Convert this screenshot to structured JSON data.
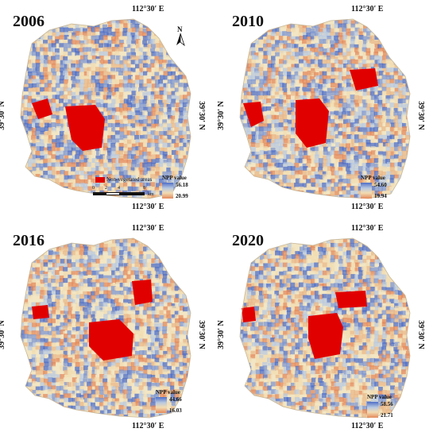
{
  "panels": [
    {
      "year": "2006",
      "lon_label": "112°30′ E",
      "lat_label": "39°30′ N",
      "npp_title": "NPP value",
      "npp_high": "56.18",
      "npp_low": "20.99"
    },
    {
      "year": "2010",
      "lon_label": "112°30′ E",
      "lat_label": "39°30′ N",
      "npp_title": "NPP value",
      "npp_high": "54.60",
      "npp_low": "19.94"
    },
    {
      "year": "2016",
      "lon_label": "112°30′ E",
      "lat_label": "39°30′ N",
      "npp_title": "NPP value",
      "npp_high": "44.66",
      "npp_low": "16.03"
    },
    {
      "year": "2020",
      "lon_label": "112°30′ E",
      "lat_label": "39°30′ N",
      "npp_title": "NPP value",
      "npp_high": "58.56",
      "npp_low": "21.71"
    }
  ],
  "legend_nonveg": "Non-vegetated areas",
  "scale": {
    "ticks": [
      "0",
      "2",
      "4",
      "8"
    ],
    "unit": "km"
  },
  "north_label": "N",
  "colors": {
    "non_vegetated": "#e10000",
    "npp_high": "#4f6fc8",
    "npp_low": "#e4895c",
    "npp_mid": "#f2dcb2"
  }
}
